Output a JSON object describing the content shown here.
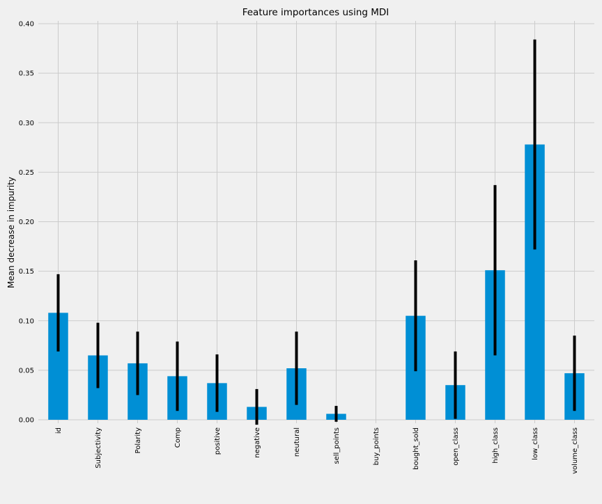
{
  "chart_data": {
    "type": "bar",
    "title": "Feature importances using MDI",
    "xlabel": "",
    "ylabel": "Mean decrease in impurity",
    "ylim": [
      -0.015,
      0.405
    ],
    "yticks": [
      0.0,
      0.05,
      0.1,
      0.15,
      0.2,
      0.25,
      0.3,
      0.35,
      0.4
    ],
    "ytick_labels": [
      "0.00",
      "0.05",
      "0.10",
      "0.15",
      "0.20",
      "0.25",
      "0.30",
      "0.35",
      "0.40"
    ],
    "grid": true,
    "categories": [
      "id",
      "Subjectivity",
      "Polarity",
      "Comp",
      "positive",
      "negative",
      "neutural",
      "sell_points",
      "buy_points",
      "bought_sold",
      "open_class",
      "high_class",
      "low_class",
      "volume_class"
    ],
    "values": [
      0.108,
      0.065,
      0.057,
      0.044,
      0.037,
      0.013,
      0.052,
      0.006,
      0.0,
      0.105,
      0.035,
      0.151,
      0.278,
      0.047
    ],
    "errors": [
      0.039,
      0.033,
      0.032,
      0.035,
      0.029,
      0.018,
      0.037,
      0.008,
      0.0,
      0.056,
      0.034,
      0.086,
      0.106,
      0.038
    ],
    "colors": {
      "bar": "#008fd5",
      "error_bar": "#000000",
      "grid": "#cbcbcb",
      "background": "#f0f0f0"
    }
  }
}
